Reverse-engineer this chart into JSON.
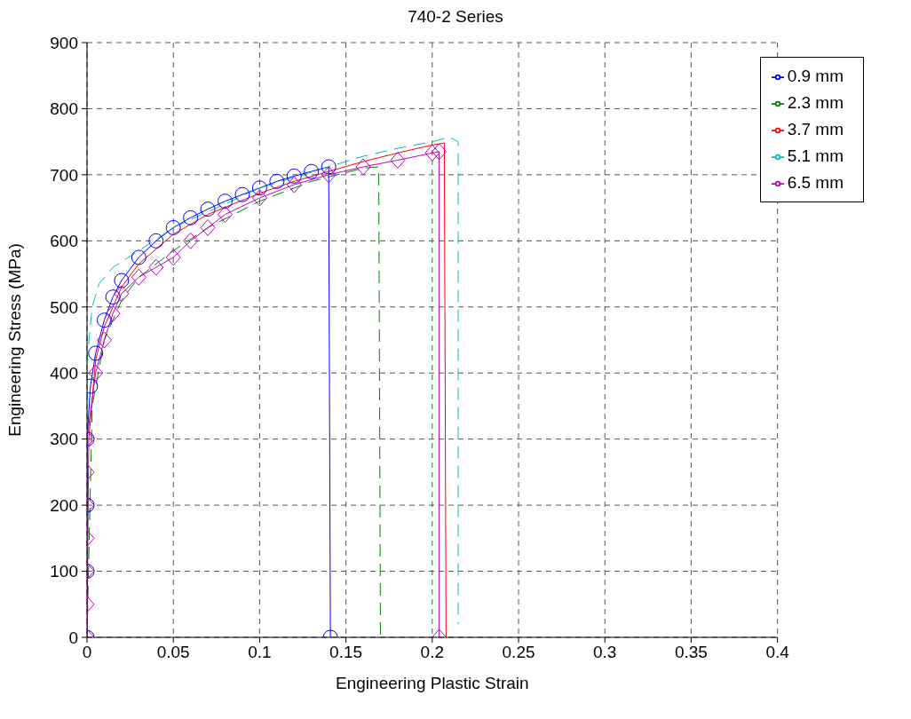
{
  "chart_data": {
    "type": "line",
    "title": "740-2 Series",
    "xlabel": "Engineering Plastic Strain",
    "ylabel": "Engineering Stress (MPa)",
    "xlim": [
      0,
      0.4
    ],
    "xticks": [
      0,
      0.05,
      0.1,
      0.15,
      0.2,
      0.25,
      0.3,
      0.35,
      0.4
    ],
    "ylim": [
      0,
      900
    ],
    "yticks": [
      0,
      100,
      200,
      300,
      400,
      500,
      600,
      700,
      800,
      900
    ],
    "grid": true,
    "legend": "top right",
    "series": [
      {
        "name": "0.9 mm",
        "color": "#0000ff",
        "marker": "circle",
        "line_style": "solid",
        "x": [
          0,
          0,
          0,
          0,
          0.002,
          0.005,
          0.01,
          0.015,
          0.02,
          0.03,
          0.04,
          0.05,
          0.06,
          0.07,
          0.08,
          0.09,
          0.1,
          0.11,
          0.12,
          0.13,
          0.14,
          0.141
        ],
        "values": [
          0,
          100,
          200,
          300,
          380,
          430,
          480,
          515,
          540,
          575,
          600,
          620,
          635,
          648,
          660,
          670,
          680,
          690,
          698,
          705,
          712,
          0
        ]
      },
      {
        "name": "2.3 mm",
        "color": "#008000",
        "marker": "none",
        "line_style": "dashed",
        "x": [
          0,
          0.003,
          0.01,
          0.02,
          0.03,
          0.05,
          0.07,
          0.1,
          0.13,
          0.16,
          0.169,
          0.17
        ],
        "values": [
          0,
          350,
          450,
          510,
          545,
          585,
          620,
          660,
          690,
          710,
          712,
          0
        ]
      },
      {
        "name": "3.7 mm",
        "color": "#ff0000",
        "marker": "none",
        "line_style": "solid",
        "x": [
          0,
          0.001,
          0.005,
          0.01,
          0.02,
          0.03,
          0.05,
          0.07,
          0.1,
          0.12,
          0.14,
          0.16,
          0.18,
          0.2,
          0.207,
          0.208
        ],
        "values": [
          0,
          300,
          420,
          470,
          530,
          565,
          610,
          640,
          672,
          690,
          705,
          720,
          733,
          745,
          748,
          0
        ]
      },
      {
        "name": "5.1 mm",
        "color": "#00bfbf",
        "marker": "none",
        "line_style": "dashed",
        "x": [
          0,
          0,
          0.003,
          0.007,
          0.015,
          0.03,
          0.05,
          0.1,
          0.14,
          0.16,
          0.18,
          0.2,
          0.21,
          0.215,
          0.215
        ],
        "values": [
          0,
          420,
          500,
          535,
          560,
          585,
          620,
          680,
          712,
          728,
          740,
          750,
          757,
          750,
          20
        ]
      },
      {
        "name": "6.5 mm",
        "color": "#bf00bf",
        "marker": "diamond",
        "line_style": "solid",
        "x": [
          0,
          0,
          0,
          0,
          0,
          0,
          0,
          0.005,
          0.01,
          0.015,
          0.02,
          0.03,
          0.04,
          0.05,
          0.06,
          0.07,
          0.08,
          0.1,
          0.12,
          0.14,
          0.16,
          0.18,
          0.2,
          0.204,
          0.204
        ],
        "values": [
          0,
          50,
          100,
          150,
          200,
          250,
          300,
          400,
          450,
          490,
          520,
          545,
          560,
          575,
          600,
          620,
          640,
          665,
          685,
          700,
          712,
          722,
          733,
          735,
          0
        ]
      }
    ]
  }
}
